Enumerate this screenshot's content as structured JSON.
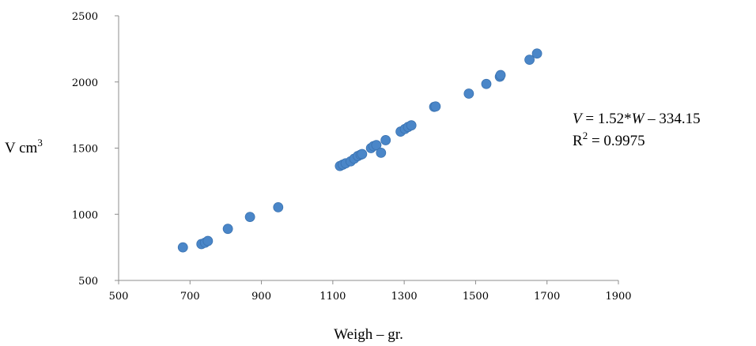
{
  "chart_data": {
    "type": "scatter",
    "title": "",
    "xlabel": "Weigh – gr.",
    "ylabel": {
      "base": "V cm",
      "sup": "3"
    },
    "xlim": [
      500,
      1900
    ],
    "ylim": [
      500,
      2500
    ],
    "x_ticks": [
      "500",
      "700",
      "900",
      "1100",
      "1300",
      "1500",
      "1700",
      "1900"
    ],
    "y_ticks": [
      "500",
      "1000",
      "1500",
      "2000",
      "2500"
    ],
    "grid": false,
    "legend": "none",
    "point_color": "#4a86c8",
    "annotation": {
      "eq_var": "V",
      "eq_mid": " = 1.52*",
      "eq_var2": "W",
      "eq_rest": " – 334.15",
      "r2_base": "R",
      "r2_sup": "2",
      "r2_rest": " = 0.9975"
    },
    "series": [
      {
        "points": [
          [
            680,
            750
          ],
          [
            732,
            775
          ],
          [
            742,
            785
          ],
          [
            750,
            798
          ],
          [
            806,
            890
          ],
          [
            868,
            980
          ],
          [
            947,
            1053
          ],
          [
            1120,
            1365
          ],
          [
            1128,
            1375
          ],
          [
            1136,
            1385
          ],
          [
            1150,
            1400
          ],
          [
            1160,
            1420
          ],
          [
            1170,
            1440
          ],
          [
            1178,
            1450
          ],
          [
            1182,
            1455
          ],
          [
            1207,
            1500
          ],
          [
            1214,
            1515
          ],
          [
            1222,
            1523
          ],
          [
            1235,
            1465
          ],
          [
            1248,
            1560
          ],
          [
            1290,
            1625
          ],
          [
            1302,
            1645
          ],
          [
            1311,
            1660
          ],
          [
            1320,
            1672
          ],
          [
            1384,
            1812
          ],
          [
            1388,
            1815
          ],
          [
            1481,
            1912
          ],
          [
            1530,
            1985
          ],
          [
            1568,
            2040
          ],
          [
            1570,
            2052
          ],
          [
            1651,
            2168
          ],
          [
            1672,
            2215
          ]
        ]
      }
    ]
  }
}
